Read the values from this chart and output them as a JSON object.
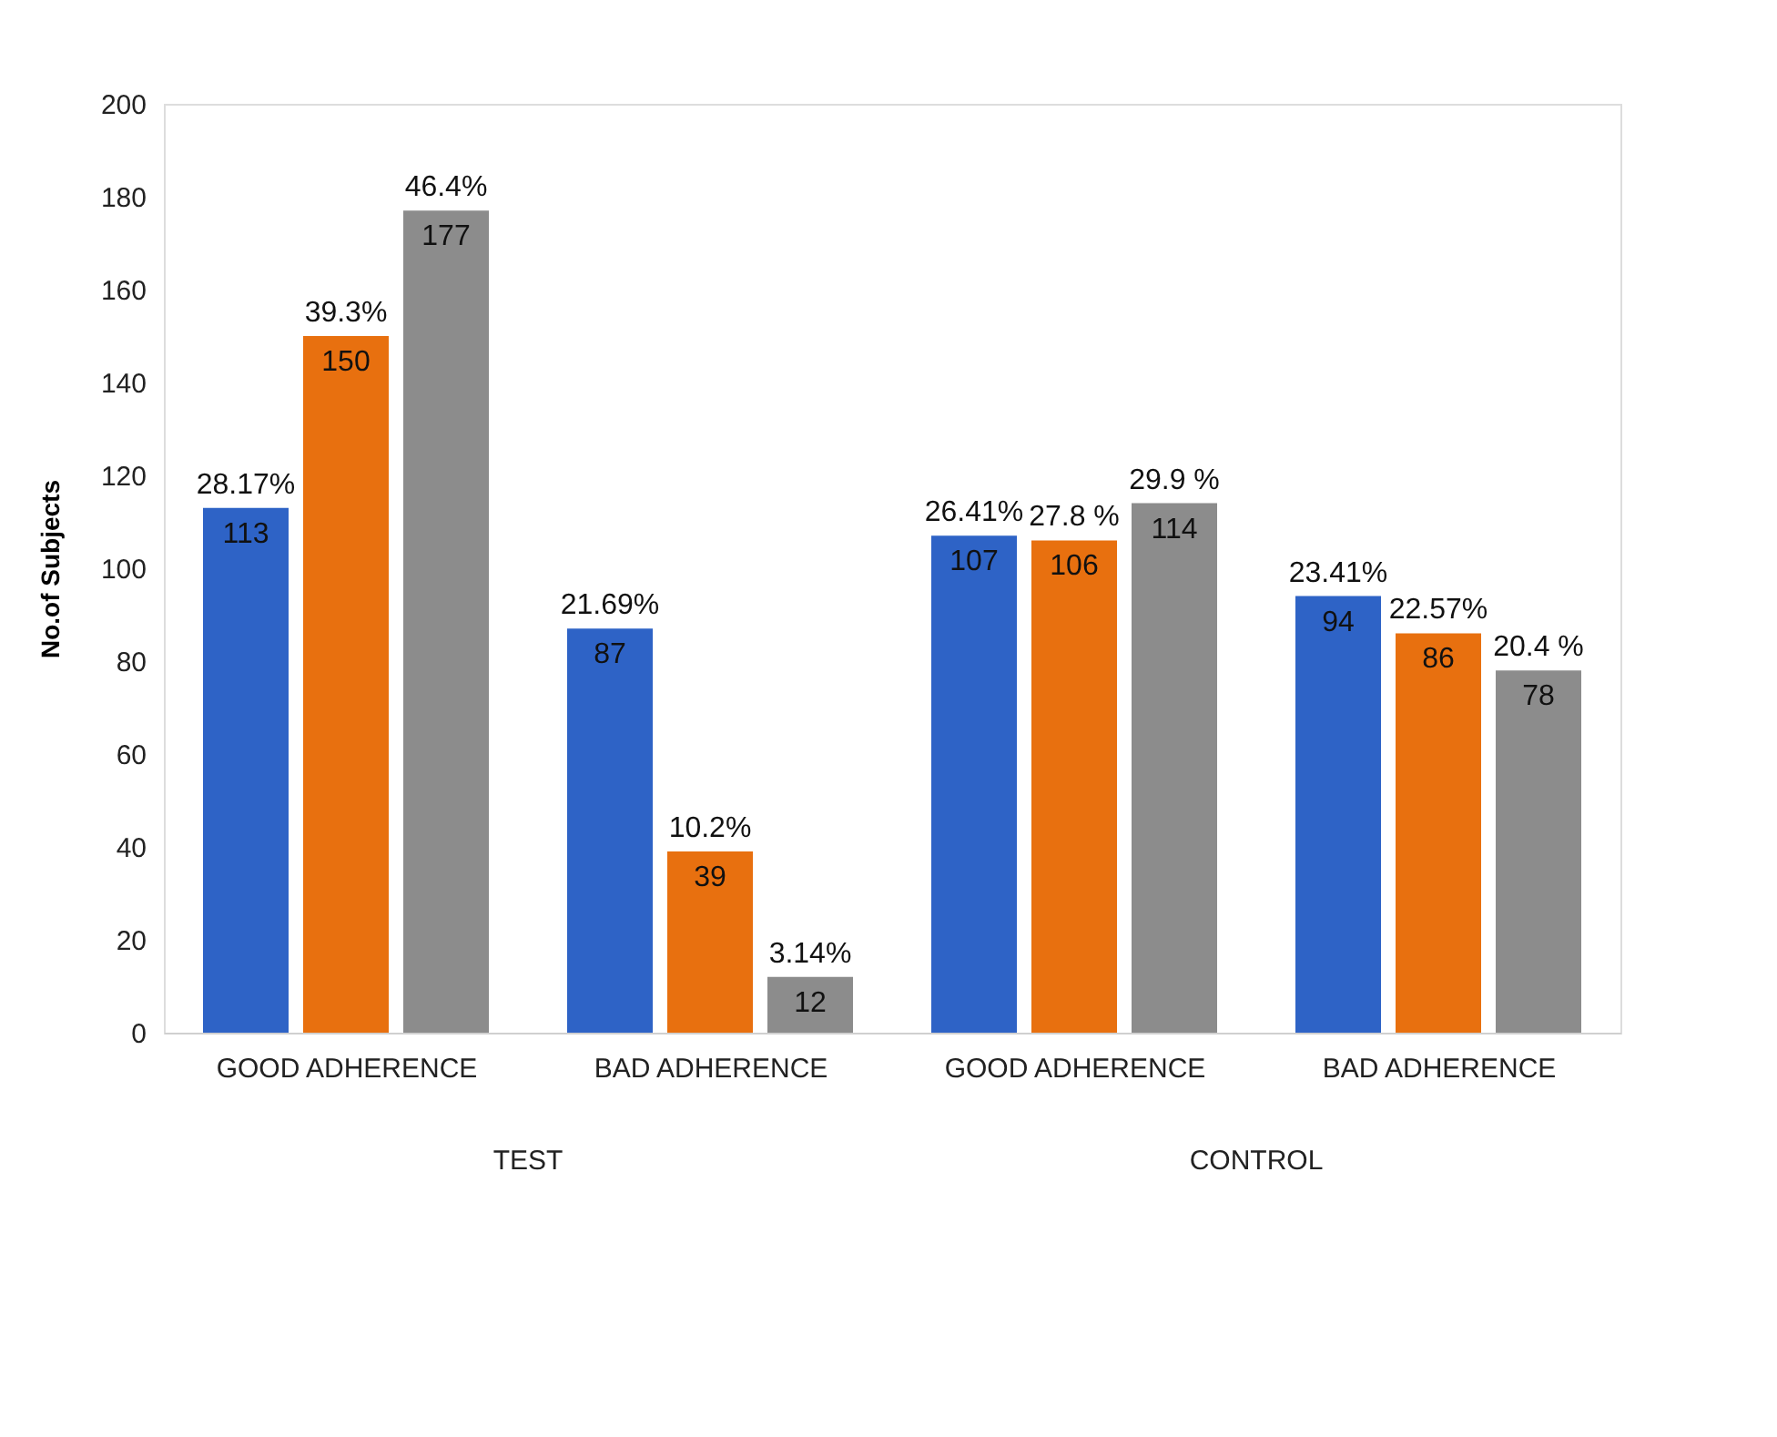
{
  "chart_data": {
    "type": "bar",
    "categories": [
      "GOOD ADHERENCE",
      "BAD ADHERENCE",
      "GOOD ADHERENCE",
      "BAD ADHERENCE"
    ],
    "series": [
      {
        "color": "#2e63c6",
        "values": [
          113,
          87,
          107,
          94
        ]
      },
      {
        "color": "#e8700f",
        "values": [
          150,
          39,
          106,
          86
        ]
      },
      {
        "color": "#8c8c8c",
        "values": [
          177,
          12,
          114,
          78
        ]
      }
    ],
    "ylabel": "No.of  Subjects",
    "ylim": [
      0,
      200
    ],
    "yticks": [
      0,
      20,
      40,
      60,
      80,
      100,
      120,
      140,
      160,
      180,
      200
    ],
    "data_labels": true,
    "grid": false,
    "legend": false,
    "annotations": [
      "TEST",
      "CONTROL",
      "28.17%",
      "21.69%",
      "26.41%",
      "23.41%",
      "39.3%",
      "10.2%",
      "27.8 %",
      "22.57%",
      "46.4%",
      "3.14%",
      "29.9 %",
      "20.4 %"
    ]
  }
}
